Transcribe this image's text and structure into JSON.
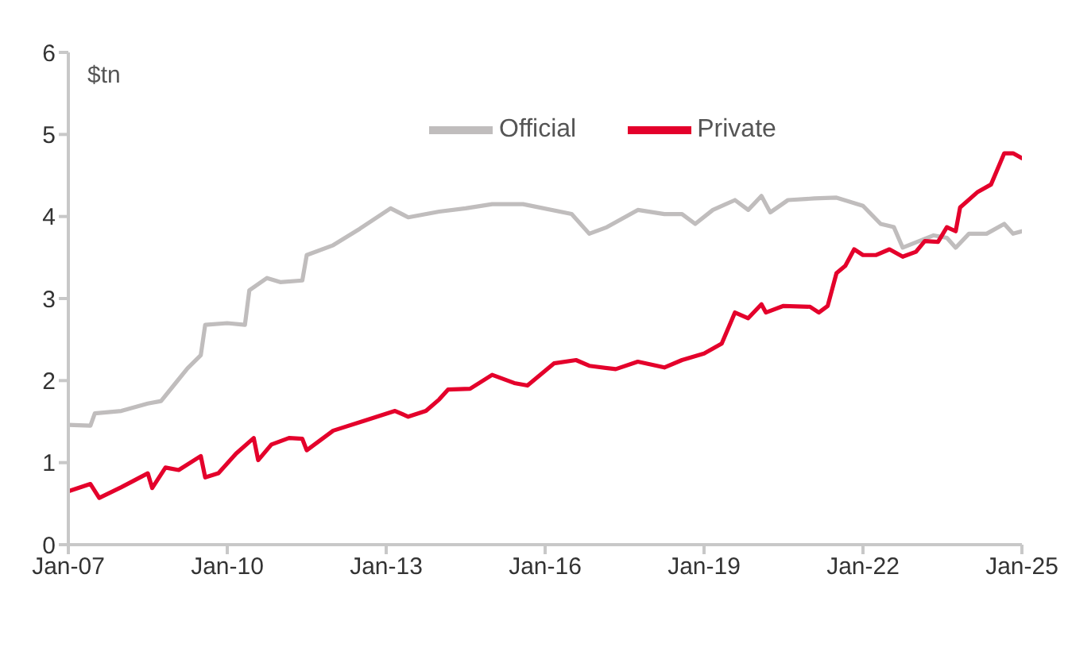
{
  "chart_data": {
    "type": "line",
    "ylabel": "$tn",
    "legend": "top",
    "line_style": "solid",
    "marker": "none",
    "xlim": [
      "2007-01",
      "2025-01"
    ],
    "xticks": [
      {
        "value": "2007-01",
        "label": "Jan-07"
      },
      {
        "value": "2010-01",
        "label": "Jan-10"
      },
      {
        "value": "2013-01",
        "label": "Jan-13"
      },
      {
        "value": "2016-01",
        "label": "Jan-16"
      },
      {
        "value": "2019-01",
        "label": "Jan-19"
      },
      {
        "value": "2022-01",
        "label": "Jan-22"
      },
      {
        "value": "2025-01",
        "label": "Jan-25"
      }
    ],
    "ylim": [
      0,
      6
    ],
    "yticks": [
      0,
      1,
      2,
      3,
      4,
      5,
      6
    ],
    "series": [
      {
        "name": "Official",
        "color": "#c0bdbd",
        "x": [
          "2007-01",
          "2007-06",
          "2007-07",
          "2008-01",
          "2008-07",
          "2008-10",
          "2009-01",
          "2009-04",
          "2009-07",
          "2009-08",
          "2010-01",
          "2010-05",
          "2010-06",
          "2010-10",
          "2011-01",
          "2011-06",
          "2011-07",
          "2012-01",
          "2012-07",
          "2013-02",
          "2013-06",
          "2014-01",
          "2014-07",
          "2015-01",
          "2015-08",
          "2016-07",
          "2016-11",
          "2017-03",
          "2017-10",
          "2018-04",
          "2018-08",
          "2018-11",
          "2019-03",
          "2019-08",
          "2019-11",
          "2020-02",
          "2020-04",
          "2020-08",
          "2021-02",
          "2021-07",
          "2022-01",
          "2022-05",
          "2022-08",
          "2022-10",
          "2023-05",
          "2023-08",
          "2023-10",
          "2024-01",
          "2024-05",
          "2024-09",
          "2024-11",
          "2025-01"
        ],
        "values": [
          1.46,
          1.45,
          1.6,
          1.63,
          1.72,
          1.75,
          1.95,
          2.15,
          2.31,
          2.68,
          2.7,
          2.68,
          3.1,
          3.25,
          3.2,
          3.22,
          3.53,
          3.65,
          3.85,
          4.1,
          3.99,
          4.06,
          4.1,
          4.15,
          4.15,
          4.03,
          3.79,
          3.87,
          4.08,
          4.03,
          4.03,
          3.91,
          4.08,
          4.2,
          4.08,
          4.25,
          4.05,
          4.2,
          4.22,
          4.23,
          4.13,
          3.91,
          3.87,
          3.62,
          3.77,
          3.74,
          3.62,
          3.79,
          3.79,
          3.91,
          3.79,
          3.82
        ]
      },
      {
        "name": "Private",
        "color": "#e4002b",
        "x": [
          "2007-01",
          "2007-06",
          "2007-08",
          "2008-01",
          "2008-07",
          "2008-08",
          "2008-11",
          "2009-02",
          "2009-07",
          "2009-08",
          "2009-11",
          "2010-03",
          "2010-07",
          "2010-08",
          "2010-11",
          "2011-03",
          "2011-06",
          "2011-07",
          "2012-01",
          "2012-08",
          "2013-03",
          "2013-06",
          "2013-10",
          "2014-01",
          "2014-03",
          "2014-08",
          "2015-01",
          "2015-06",
          "2015-09",
          "2016-03",
          "2016-08",
          "2016-11",
          "2017-05",
          "2017-10",
          "2018-04",
          "2018-08",
          "2019-01",
          "2019-05",
          "2019-08",
          "2019-11",
          "2020-02",
          "2020-03",
          "2020-07",
          "2021-01",
          "2021-03",
          "2021-05",
          "2021-07",
          "2021-09",
          "2021-11",
          "2022-01",
          "2022-04",
          "2022-07",
          "2022-10",
          "2023-01",
          "2023-03",
          "2023-06",
          "2023-08",
          "2023-10",
          "2023-11",
          "2024-03",
          "2024-06",
          "2024-09",
          "2024-11",
          "2025-01"
        ],
        "values": [
          0.65,
          0.74,
          0.57,
          0.7,
          0.87,
          0.69,
          0.94,
          0.91,
          1.08,
          0.82,
          0.87,
          1.11,
          1.3,
          1.03,
          1.22,
          1.3,
          1.29,
          1.15,
          1.39,
          1.51,
          1.63,
          1.56,
          1.63,
          1.77,
          1.89,
          1.9,
          2.07,
          1.97,
          1.94,
          2.21,
          2.25,
          2.18,
          2.14,
          2.23,
          2.16,
          2.25,
          2.33,
          2.45,
          2.83,
          2.76,
          2.93,
          2.83,
          2.91,
          2.9,
          2.83,
          2.91,
          3.31,
          3.4,
          3.6,
          3.53,
          3.53,
          3.6,
          3.51,
          3.57,
          3.7,
          3.69,
          3.87,
          3.82,
          4.11,
          4.3,
          4.39,
          4.77,
          4.77,
          4.71
        ]
      }
    ]
  }
}
